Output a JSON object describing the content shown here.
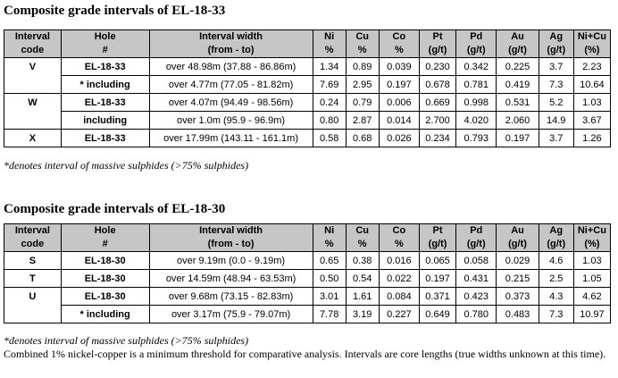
{
  "headers": [
    "Interval code",
    "Hole #",
    "Interval width (from - to)",
    "Ni %",
    "Cu %",
    "Co %",
    "Pt (g/t)",
    "Pd (g/t)",
    "Au (g/t)",
    "Ag (g/t)",
    "Ni+Cu (%)"
  ],
  "header_lines": [
    [
      "Interval",
      "code"
    ],
    [
      "Hole",
      "#"
    ],
    [
      "Interval width",
      "(from - to)"
    ],
    [
      "Ni",
      "%"
    ],
    [
      "Cu",
      "%"
    ],
    [
      "Co",
      "%"
    ],
    [
      "Pt",
      "(g/t)"
    ],
    [
      "Pd",
      "(g/t)"
    ],
    [
      "Au",
      "(g/t)"
    ],
    [
      "Ag",
      "(g/t)"
    ],
    [
      "Ni+Cu",
      "(%)"
    ]
  ],
  "header_bg": "#c6c6c6",
  "tables": [
    {
      "title": "Composite grade intervals of EL-18-33",
      "rows": [
        {
          "code": "V",
          "hole": "EL-18-33",
          "width": "over 48.98m (37.88 - 86.86m)",
          "ni": "1.34",
          "cu": "0.89",
          "co": "0.039",
          "pt": "0.230",
          "pd": "0.342",
          "au": "0.225",
          "ag": "3.7",
          "nicu": "2.23"
        },
        {
          "code": "",
          "hole": "* including",
          "width": "over 4.77m (77.05 - 81.82m)",
          "ni": "7.69",
          "cu": "2.95",
          "co": "0.197",
          "pt": "0.678",
          "pd": "0.781",
          "au": "0.419",
          "ag": "7.3",
          "nicu": "10.64"
        },
        {
          "code": "W",
          "hole": "EL-18-33",
          "width": "over 4.07m (94.49 - 98.56m)",
          "ni": "0.24",
          "cu": "0.79",
          "co": "0.006",
          "pt": "0.669",
          "pd": "0.998",
          "au": "0.531",
          "ag": "5.2",
          "nicu": "1.03"
        },
        {
          "code": "",
          "hole": "including",
          "width": "over 1.0m (95.9 - 96.9m)",
          "ni": "0.80",
          "cu": "2.87",
          "co": "0.014",
          "pt": "2.700",
          "pd": "4.020",
          "au": "2.060",
          "ag": "14.9",
          "nicu": "3.67"
        },
        {
          "code": "X",
          "hole": "EL-18-33",
          "width": "over 17.99m (143.11 - 161.1m)",
          "ni": "0.58",
          "cu": "0.68",
          "co": "0.026",
          "pt": "0.234",
          "pd": "0.793",
          "au": "0.197",
          "ag": "3.7",
          "nicu": "1.26"
        }
      ],
      "note": "*denotes interval of massive sulphides (>75% sulphides)"
    },
    {
      "title": "Composite grade intervals of EL-18-30",
      "rows": [
        {
          "code": "S",
          "hole": "EL-18-30",
          "width": "over 9.19m (0.0 - 9.19m)",
          "ni": "0.65",
          "cu": "0.38",
          "co": "0.016",
          "pt": "0.065",
          "pd": "0.058",
          "au": "0.029",
          "ag": "4.6",
          "nicu": "1.03"
        },
        {
          "code": "T",
          "hole": "EL-18-30",
          "width": "over 14.59m (48.94 - 63.53m)",
          "ni": "0.50",
          "cu": "0.54",
          "co": "0.022",
          "pt": "0.197",
          "pd": "0.431",
          "au": "0.215",
          "ag": "2.5",
          "nicu": "1.05"
        },
        {
          "code": "U",
          "hole": "EL-18-30",
          "width": "over 9.68m (73.15 - 82.83m)",
          "ni": "3.01",
          "cu": "1.61",
          "co": "0.084",
          "pt": "0.371",
          "pd": "0.423",
          "au": "0.373",
          "ag": "4.3",
          "nicu": "4.62"
        },
        {
          "code": "",
          "hole": "* including",
          "width": "over 3.17m (75.9 - 79.07m)",
          "ni": "7.78",
          "cu": "3.19",
          "co": "0.227",
          "pt": "0.649",
          "pd": "0.780",
          "au": "0.483",
          "ag": "7.3",
          "nicu": "10.97"
        }
      ],
      "note": "*denotes interval of massive sulphides (>75% sulphides)"
    }
  ],
  "footnote": "Combined 1% nickel-copper is a minimum threshold for comparative analysis. Intervals are core lengths (true widths unknown at this time)."
}
